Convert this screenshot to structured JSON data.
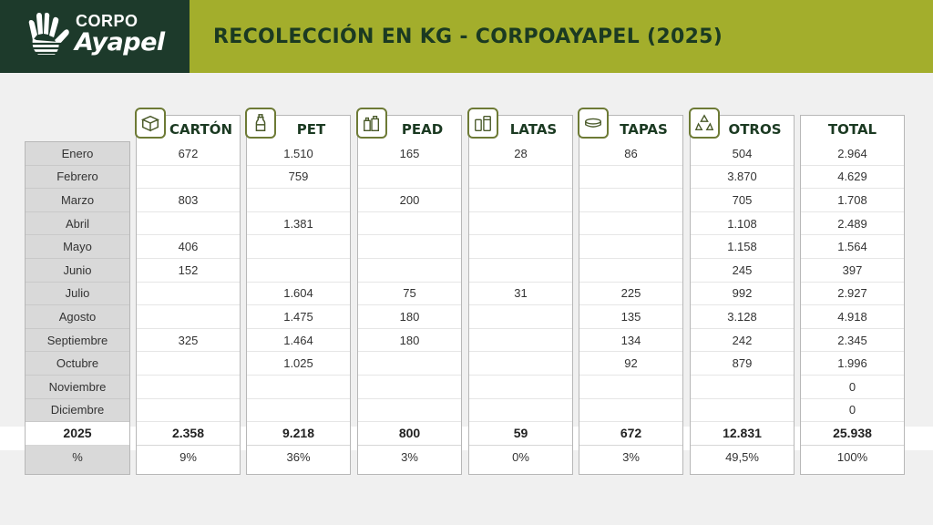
{
  "brand": {
    "line1": "CORPO",
    "line2": "Ayapel"
  },
  "title": "RECOLECCIÓN EN KG - CORPOAYAPEL (2025)",
  "months": [
    "Enero",
    "Febrero",
    "Marzo",
    "Abril",
    "Mayo",
    "Junio",
    "Julio",
    "Agosto",
    "Septiembre",
    "Octubre",
    "Noviembre",
    "Diciembre"
  ],
  "total_label": "2025",
  "pct_label": "%",
  "columns": [
    {
      "key": "carton",
      "label": "CARTÓN",
      "icon": "box-icon",
      "values": [
        "672",
        "",
        "803",
        "",
        "406",
        "152",
        "",
        "",
        "325",
        "",
        "",
        ""
      ],
      "total": "2.358",
      "pct": "9%"
    },
    {
      "key": "pet",
      "label": "PET",
      "icon": "bottle-icon",
      "values": [
        "1.510",
        "759",
        "",
        "1.381",
        "",
        "",
        "1.604",
        "1.475",
        "1.464",
        "1.025",
        "",
        ""
      ],
      "total": "9.218",
      "pct": "36%"
    },
    {
      "key": "pead",
      "label": "PEAD",
      "icon": "containers-icon",
      "values": [
        "165",
        "",
        "200",
        "",
        "",
        "",
        "75",
        "180",
        "180",
        "",
        "",
        ""
      ],
      "total": "800",
      "pct": "3%"
    },
    {
      "key": "latas",
      "label": "LATAS",
      "icon": "cans-icon",
      "values": [
        "28",
        "",
        "",
        "",
        "",
        "",
        "31",
        "",
        "",
        "",
        "",
        ""
      ],
      "total": "59",
      "pct": "0%"
    },
    {
      "key": "tapas",
      "label": "TAPAS",
      "icon": "cap-icon",
      "values": [
        "86",
        "",
        "",
        "",
        "",
        "",
        "225",
        "135",
        "134",
        "92",
        "",
        ""
      ],
      "total": "672",
      "pct": "3%"
    },
    {
      "key": "otros",
      "label": "OTROS",
      "icon": "recycle-icon",
      "values": [
        "504",
        "3.870",
        "705",
        "1.108",
        "1.158",
        "245",
        "992",
        "3.128",
        "242",
        "879",
        "",
        ""
      ],
      "total": "12.831",
      "pct": "49,5%"
    },
    {
      "key": "total",
      "label": "TOTAL",
      "icon": "",
      "values": [
        "2.964",
        "4.629",
        "1.708",
        "2.489",
        "1.564",
        "397",
        "2.927",
        "4.918",
        "2.345",
        "1.996",
        "0",
        "0"
      ],
      "total": "25.938",
      "pct": "100%"
    }
  ]
}
